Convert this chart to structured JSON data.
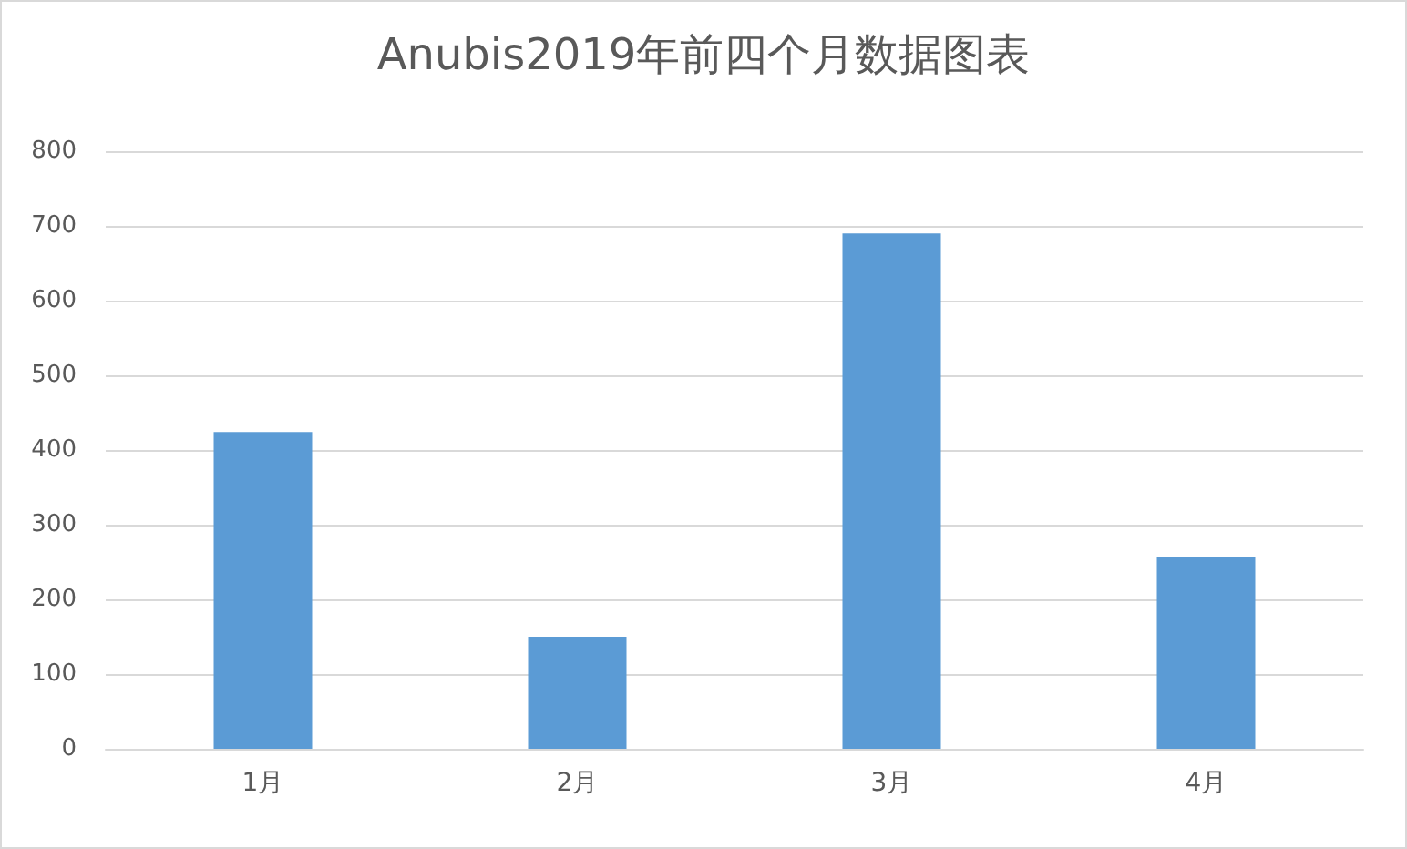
{
  "chart_data": {
    "type": "bar",
    "title": "Anubis2019年前四个月数据图表",
    "categories": [
      "1月",
      "2月",
      "3月",
      "4月"
    ],
    "values": [
      424,
      150,
      690,
      256
    ],
    "color": "#5b9bd5",
    "ylim": [
      0,
      800
    ],
    "yticks": [
      0,
      100,
      200,
      300,
      400,
      500,
      600,
      700,
      800
    ],
    "grid": "y"
  }
}
